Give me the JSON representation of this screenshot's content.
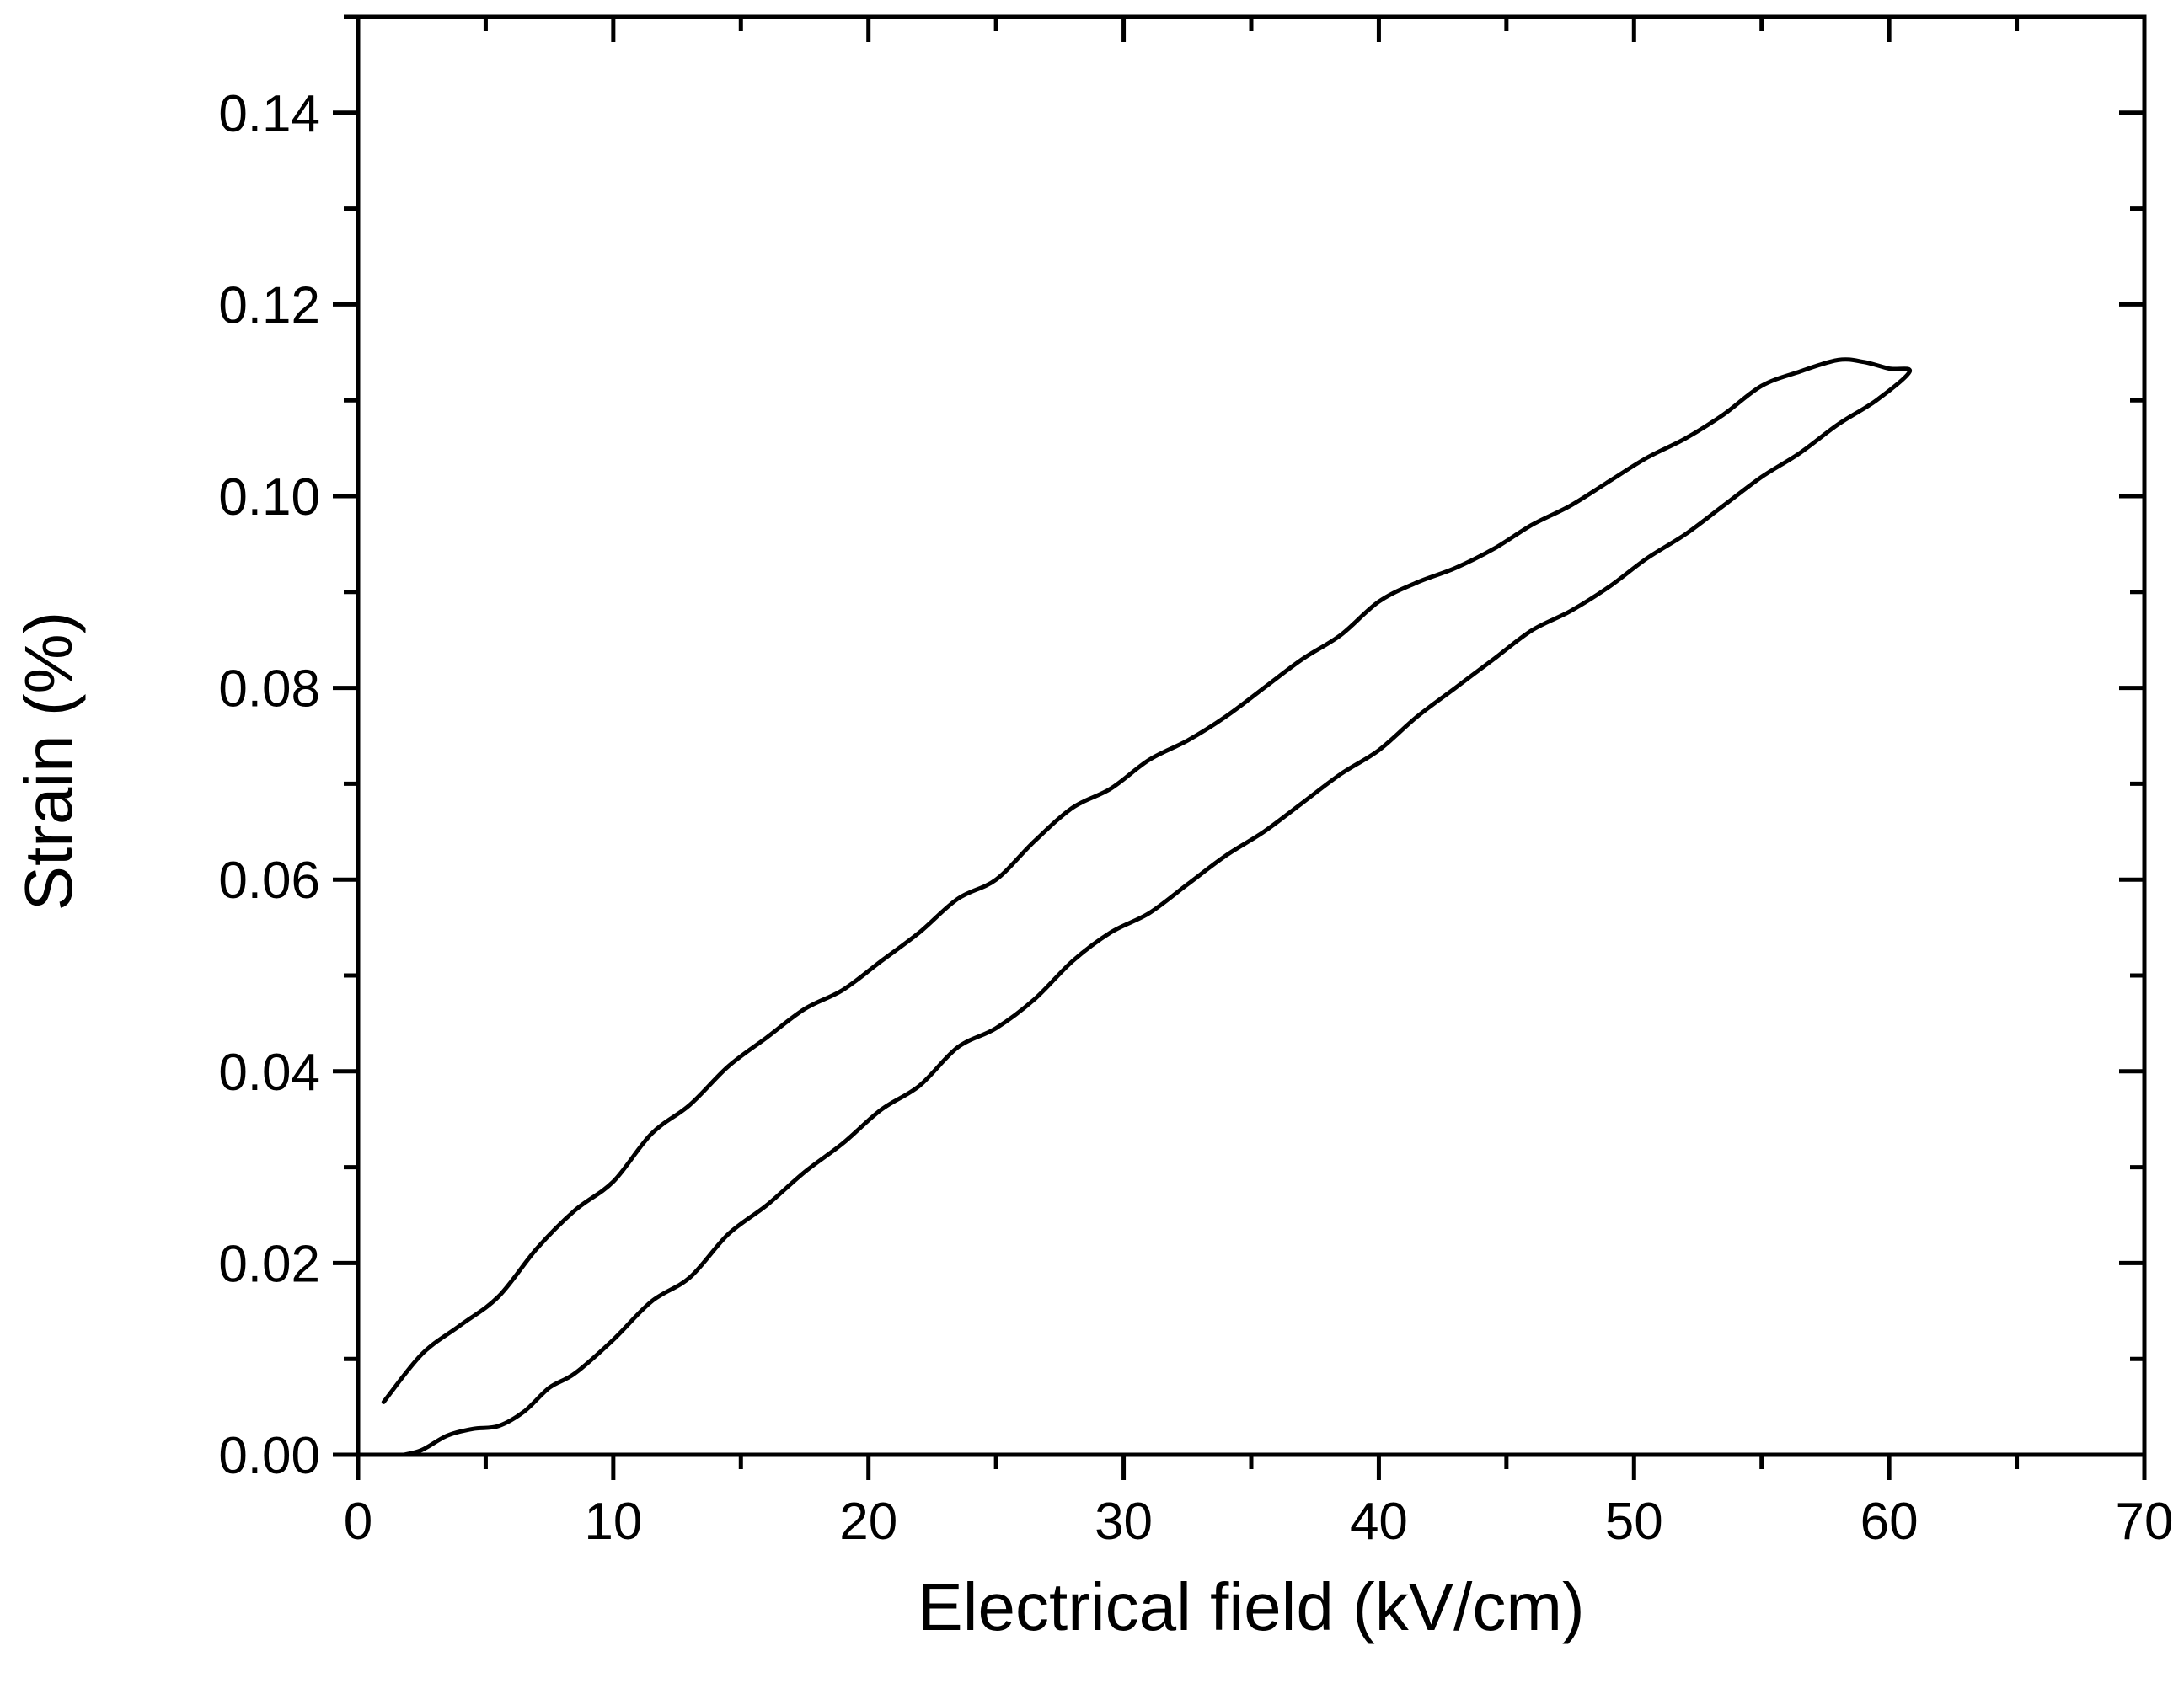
{
  "chart_data": {
    "type": "line",
    "title": "",
    "xlabel": "Electrical field (kV/cm)",
    "ylabel": "Strain (%)",
    "xlim": [
      0,
      70
    ],
    "ylim": [
      0,
      0.15
    ],
    "x_ticks": [
      0,
      10,
      20,
      30,
      40,
      50,
      60,
      70
    ],
    "x_tick_labels": [
      "0",
      "10",
      "20",
      "30",
      "40",
      "50",
      "60",
      "70"
    ],
    "y_ticks": [
      0,
      0.02,
      0.04,
      0.06,
      0.08,
      0.1,
      0.12,
      0.14
    ],
    "y_tick_labels": [
      "0.00",
      "0.02",
      "0.04",
      "0.06",
      "0.08",
      "0.10",
      "0.12",
      "0.14"
    ],
    "grid": false,
    "legend": "none",
    "line_color": "#000000",
    "series": [
      {
        "x": [
          1.0,
          2.5,
          4.0,
          5.5,
          7.0,
          8.5,
          10.0,
          11.5,
          13.0,
          14.5,
          16.0,
          17.5,
          19.0,
          20.5,
          22.0,
          23.5,
          25.0,
          26.5,
          28.0,
          29.5,
          31.0,
          32.5,
          34.0,
          35.5,
          37.0,
          38.5,
          40.0,
          41.5,
          43.0,
          44.5,
          46.0,
          47.5,
          49.0,
          50.5,
          52.0,
          53.5,
          55.0,
          56.5,
          58.0,
          59.0,
          60.0,
          60.8,
          59.5,
          58.0,
          56.5,
          55.0,
          53.5,
          52.0,
          50.5,
          49.0,
          47.5,
          46.0,
          44.5,
          43.0,
          41.5,
          40.0,
          38.5,
          37.0,
          35.5,
          34.0,
          32.5,
          31.0,
          29.5,
          28.0,
          26.5,
          25.0,
          23.5,
          22.0,
          20.5,
          19.0,
          17.5,
          16.0,
          14.5,
          13.0,
          11.5,
          10.0,
          8.5,
          7.5,
          6.5,
          5.5,
          4.5,
          3.5,
          2.5,
          1.8
        ],
        "y": [
          0.0055,
          0.0105,
          0.0135,
          0.0165,
          0.0215,
          0.0255,
          0.0285,
          0.0335,
          0.0365,
          0.0405,
          0.0435,
          0.0465,
          0.0485,
          0.0515,
          0.0545,
          0.058,
          0.06,
          0.064,
          0.0675,
          0.0695,
          0.0725,
          0.0745,
          0.077,
          0.08,
          0.083,
          0.0855,
          0.089,
          0.091,
          0.0925,
          0.0945,
          0.097,
          0.099,
          0.1015,
          0.104,
          0.106,
          0.1085,
          0.1115,
          0.113,
          0.1142,
          0.114,
          0.1133,
          0.113,
          0.11,
          0.1075,
          0.1045,
          0.102,
          0.099,
          0.096,
          0.0935,
          0.0905,
          0.088,
          0.086,
          0.083,
          0.08,
          0.077,
          0.0735,
          0.071,
          0.068,
          0.065,
          0.0625,
          0.0595,
          0.0565,
          0.0545,
          0.0515,
          0.0475,
          0.0445,
          0.0425,
          0.0385,
          0.036,
          0.0325,
          0.0295,
          0.026,
          0.023,
          0.0185,
          0.016,
          0.012,
          0.0085,
          0.007,
          0.0045,
          0.003,
          0.0027,
          0.002,
          0.0005,
          0.0
        ]
      }
    ]
  }
}
